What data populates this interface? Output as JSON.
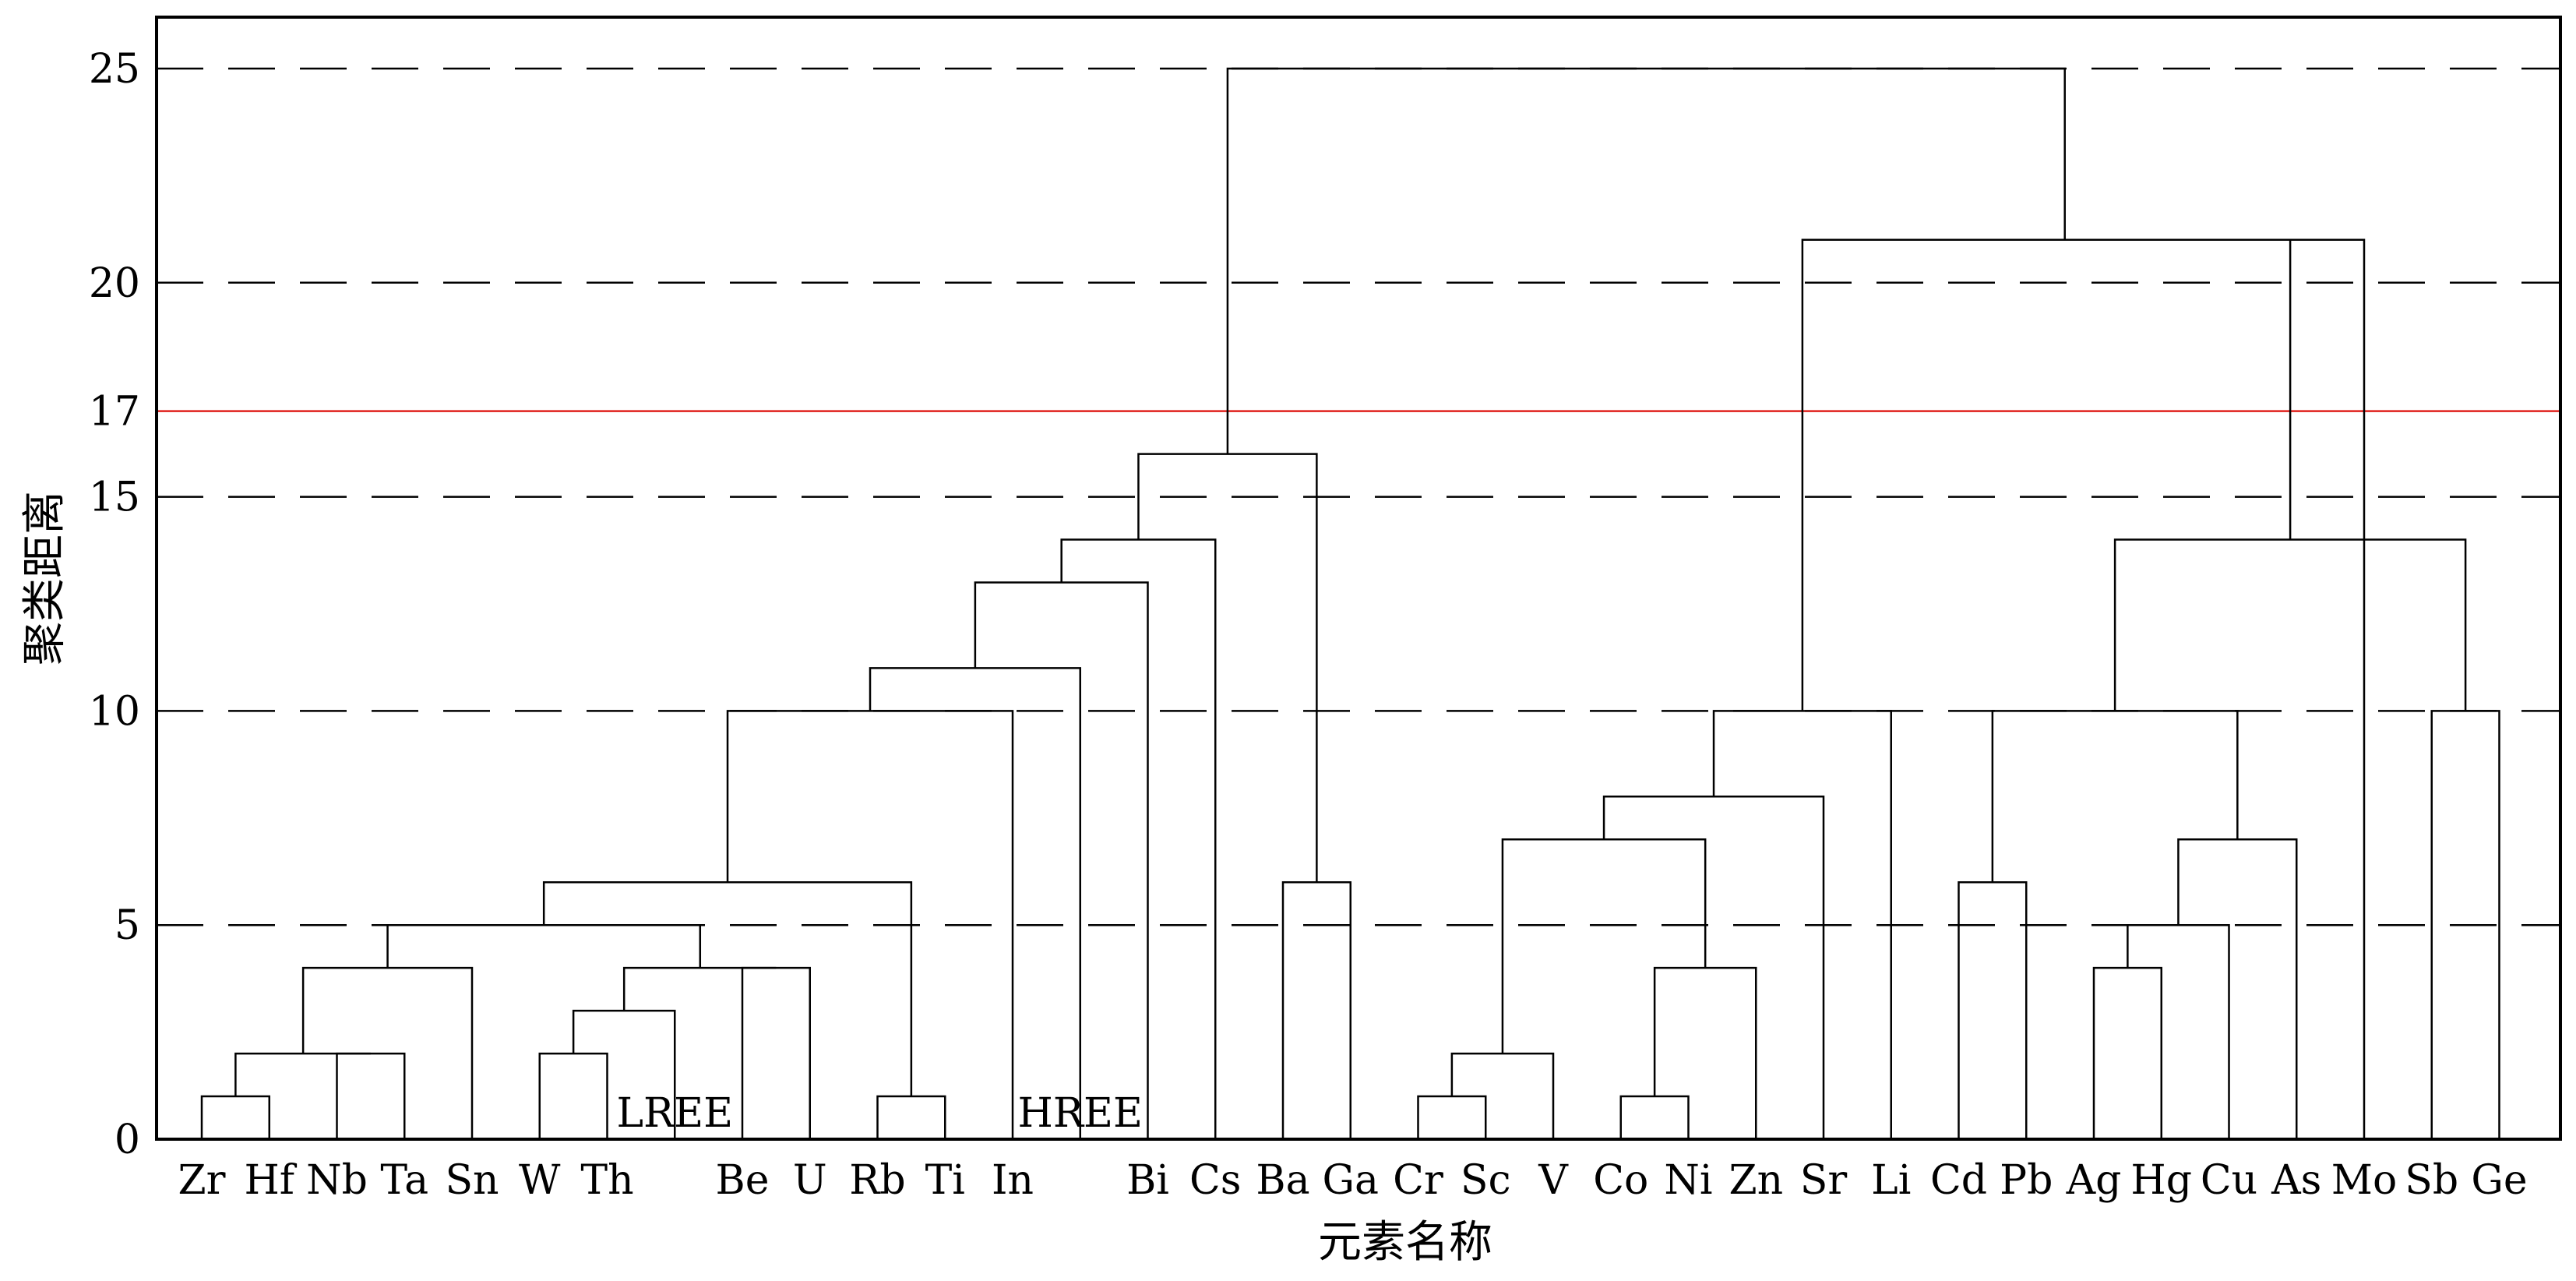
{
  "chart_data": {
    "type": "dendrogram",
    "xlabel": "元素名称",
    "ylabel": "聚类距离",
    "ylim": [
      0,
      26.2
    ],
    "yticks": [
      0,
      5,
      10,
      15,
      17,
      20,
      25
    ],
    "grid": "dashed horizontal at 5, 10, 15, 20, 25",
    "threshold": {
      "value": 17,
      "color": "#e0201c"
    },
    "leaves": [
      "Zr",
      "Hf",
      "Nb",
      "Ta",
      "Sn",
      "W",
      "Th",
      "",
      "Be",
      "U",
      "Rb",
      "Ti",
      "In",
      "",
      "Bi",
      "Cs",
      "Ba",
      "Ga",
      "Cr",
      "Sc",
      "V",
      "Co",
      "Ni",
      "Zn",
      "Sr",
      "Li",
      "Cd",
      "Pb",
      "Ag",
      "Hg",
      "Cu",
      "As",
      "Mo",
      "Sb",
      "Ge"
    ],
    "merges": [
      {
        "a": "L0",
        "b": "L1",
        "height": 1,
        "id": "N0"
      },
      {
        "a": "L2",
        "b": "L3",
        "height": 2,
        "id": "N1"
      },
      {
        "a": "N0",
        "b": "N1",
        "height": 2,
        "id": "N2"
      },
      {
        "a": "N2",
        "b": "L4",
        "height": 4,
        "id": "N3"
      },
      {
        "a": "L5",
        "b": "L6",
        "height": 2,
        "id": "N4"
      },
      {
        "a": "N4",
        "b": "L7",
        "height": 3,
        "id": "N5"
      },
      {
        "a": "L8",
        "b": "L9",
        "height": 4,
        "id": "N6"
      },
      {
        "a": "N5",
        "b": "N6",
        "height": 4,
        "id": "N7"
      },
      {
        "a": "N3",
        "b": "N7",
        "height": 5,
        "id": "N8"
      },
      {
        "a": "L10",
        "b": "L11",
        "height": 1,
        "id": "N9"
      },
      {
        "a": "N8",
        "b": "N9",
        "height": 6,
        "id": "N10"
      },
      {
        "a": "N10",
        "b": "L12",
        "height": 10,
        "id": "N11"
      },
      {
        "a": "N11",
        "b": "L13",
        "height": 11,
        "id": "N12"
      },
      {
        "a": "N12",
        "b": "L14",
        "height": 13,
        "id": "N13"
      },
      {
        "a": "N13",
        "b": "L15",
        "height": 14,
        "id": "N14"
      },
      {
        "a": "L16",
        "b": "L17",
        "height": 6,
        "id": "N15"
      },
      {
        "a": "N14",
        "b": "N15",
        "height": 16,
        "id": "N16"
      },
      {
        "a": "L18",
        "b": "L19",
        "height": 1,
        "id": "N17"
      },
      {
        "a": "N17",
        "b": "L20",
        "height": 2,
        "id": "N18"
      },
      {
        "a": "L21",
        "b": "L22",
        "height": 1,
        "id": "N19"
      },
      {
        "a": "N19",
        "b": "L23",
        "height": 4,
        "id": "N20"
      },
      {
        "a": "N18",
        "b": "N20",
        "height": 7,
        "id": "N21"
      },
      {
        "a": "N21",
        "b": "L24",
        "height": 8,
        "id": "N22"
      },
      {
        "a": "N22",
        "b": "L25",
        "height": 10,
        "id": "N23"
      },
      {
        "a": "L26",
        "b": "L27",
        "height": 6,
        "id": "N24"
      },
      {
        "a": "L28",
        "b": "L29",
        "height": 4,
        "id": "N25"
      },
      {
        "a": "N25",
        "b": "L30",
        "height": 5,
        "id": "N26"
      },
      {
        "a": "N26",
        "b": "L31",
        "height": 7,
        "id": "N27"
      },
      {
        "a": "N24",
        "b": "N27",
        "height": 10,
        "id": "N28"
      },
      {
        "a": "L33",
        "b": "L34",
        "height": 10,
        "id": "N29"
      },
      {
        "a": "N28",
        "b": "N29",
        "height": 14,
        "id": "N30"
      },
      {
        "a": "N30",
        "b": "L32",
        "height": 21,
        "id": "N31"
      },
      {
        "a": "N23",
        "b": "N31",
        "height": 21,
        "id": "N32"
      },
      {
        "a": "N16",
        "b": "N32",
        "height": 25,
        "id": "N33"
      }
    ],
    "annotations": [
      {
        "text": "LREE",
        "leaf": 7
      },
      {
        "text": "HREE",
        "leaf": 13
      }
    ]
  }
}
